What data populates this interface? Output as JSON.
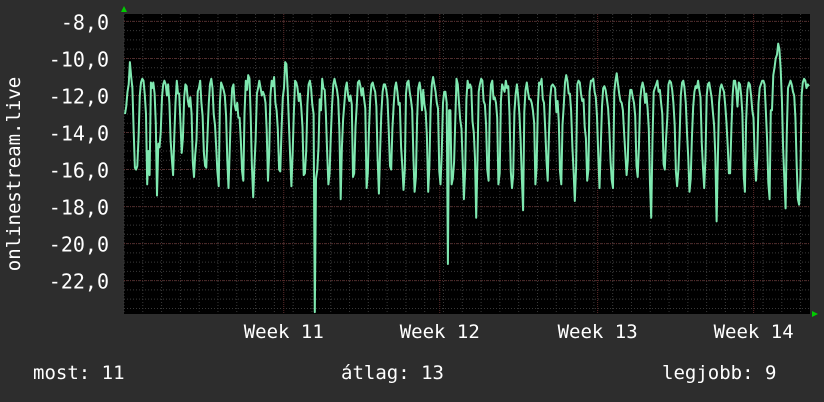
{
  "colors": {
    "background": "#2d2d2d",
    "plot_background": "#000000",
    "grid_major": "#5a2a2a",
    "grid_minor": "#3a3a3a",
    "line": "#7fe8b0",
    "axis_arrow": "#00cc00",
    "text": "#ffffff"
  },
  "legend": {
    "current_label": "most:",
    "current_value": "11",
    "average_label": "átlag:",
    "average_value": "13",
    "best_label": "legjobb:",
    "best_value": "9"
  },
  "chart_data": {
    "type": "line",
    "title": "",
    "ylabel": "onlinestream.live",
    "xlabel": "",
    "ylim": [
      -23.8,
      -7.6
    ],
    "y_ticks": [
      -8.0,
      -10.0,
      -12.0,
      -14.0,
      -16.0,
      -18.0,
      -20.0,
      -22.0
    ],
    "y_tick_labels": [
      "-8,0",
      "-10,0",
      "-12,0",
      "-14,0",
      "-16,0",
      "-18,0",
      "-20,0",
      "-22,0"
    ],
    "x_range_days": [
      0,
      36.5
    ],
    "x_ticks": [
      {
        "label": "Week 11",
        "day": 8.5
      },
      {
        "label": "Week 12",
        "day": 16.8
      },
      {
        "label": "Week 13",
        "day": 25.2
      },
      {
        "label": "Week 14",
        "day": 33.5
      }
    ],
    "grid": true,
    "series": [
      {
        "values": [
          -13.0,
          -12.6,
          -11.8,
          -11.4,
          -10.2,
          -11.0,
          -11.6,
          -13.8,
          -15.9,
          -16.0,
          -15.8,
          -14.2,
          -12.0,
          -11.3,
          -11.1,
          -11.2,
          -11.9,
          -13.0,
          -16.8,
          -15.0,
          -16.3,
          -11.3,
          -11.6,
          -11.3,
          -11.9,
          -13.5,
          -17.4,
          -14.6,
          -14.8,
          -14.0,
          -12.1,
          -11.4,
          -11.2,
          -11.4,
          -12.0,
          -11.4,
          -12.4,
          -14.4,
          -15.4,
          -16.3,
          -14.2,
          -12.4,
          -11.2,
          -11.9,
          -11.9,
          -13.5,
          -15.1,
          -14.3,
          -12.1,
          -11.4,
          -11.5,
          -12.3,
          -12.6,
          -12.1,
          -13.0,
          -15.6,
          -16.4,
          -15.2,
          -14.4,
          -11.8,
          -11.6,
          -11.2,
          -12.4,
          -13.1,
          -15.1,
          -15.8,
          -15.9,
          -14.0,
          -12.4,
          -11.4,
          -11.1,
          -11.6,
          -13.0,
          -13.6,
          -14.8,
          -16.1,
          -16.9,
          -12.4,
          -11.3,
          -11.5,
          -11.7,
          -12.0,
          -13.1,
          -15.5,
          -17.0,
          -14.8,
          -12.8,
          -11.6,
          -11.4,
          -12.5,
          -12.8,
          -12.4,
          -13.2,
          -13.2,
          -14.4,
          -16.1,
          -16.6,
          -13.0,
          -11.2,
          -11.7,
          -10.9,
          -11.1,
          -13.1,
          -15.8,
          -17.5,
          -15.8,
          -14.4,
          -11.9,
          -11.6,
          -11.2,
          -11.6,
          -12.0,
          -11.8,
          -12.0,
          -12.4,
          -13.9,
          -16.6,
          -15.1,
          -12.0,
          -11.2,
          -11.5,
          -11.0,
          -12.4,
          -12.8,
          -13.8,
          -16.0,
          -16.1,
          -13.9,
          -12.1,
          -11.6,
          -10.2,
          -10.3,
          -11.7,
          -13.5,
          -15.2,
          -16.9,
          -15.2,
          -13.0,
          -11.2,
          -11.3,
          -11.6,
          -12.3,
          -11.9,
          -12.6,
          -13.7,
          -16.3,
          -16.2,
          -15.0,
          -12.5,
          -11.4,
          -11.2,
          -11.6,
          -12.5,
          -13.0,
          -14.6,
          -16.5,
          -16.0,
          -14.8,
          -12.2,
          -12.8,
          -11.1,
          -11.6,
          -11.7,
          -13.0,
          -15.0,
          -16.8,
          -16.2,
          -14.2,
          -12.6,
          -11.4,
          -11.1,
          -11.4,
          -11.7,
          -12.2,
          -13.9,
          -17.6,
          -14.8,
          -13.3,
          -12.4,
          -11.6,
          -11.3,
          -12.0,
          -12.3,
          -12.0,
          -12.5,
          -16.4,
          -16.2,
          -13.7,
          -12.6,
          -11.3,
          -11.2,
          -11.5,
          -12.0,
          -11.6,
          -12.2,
          -12.7,
          -17.0,
          -16.2,
          -13.8,
          -12.1,
          -11.4,
          -11.3,
          -11.6,
          -11.8,
          -12.6,
          -15.4,
          -17.3,
          -15.0,
          -13.0,
          -11.8,
          -11.4,
          -11.4,
          -11.7,
          -12.2,
          -13.8,
          -15.8,
          -16.0,
          -13.8,
          -12.5,
          -11.6,
          -11.3,
          -11.8,
          -12.5,
          -12.4,
          -14.8,
          -15.8,
          -17.1,
          -16.0,
          -11.9,
          -11.3,
          -11.2,
          -11.8,
          -12.2,
          -12.8,
          -15.3,
          -17.2,
          -16.4,
          -13.3,
          -11.6,
          -11.3,
          -11.8,
          -12.8,
          -11.7,
          -12.5,
          -12.9,
          -14.2,
          -17.2,
          -15.8,
          -12.7,
          -11.4,
          -11.0,
          -11.4,
          -11.8,
          -12.4,
          -12.7,
          -16.1,
          -16.8,
          -15.2,
          -12.4,
          -11.8,
          -11.8,
          -12.4,
          -11.6,
          -12.8,
          -12.8,
          -16.8,
          -16.5,
          -15.6,
          -13.3,
          -11.1,
          -11.4,
          -12.4,
          -13.3,
          -13.8,
          -15.6,
          -17.6,
          -16.0,
          -12.2,
          -11.2,
          -11.6,
          -11.4,
          -11.6,
          -13.4,
          -14.0,
          -15.4,
          -18.5,
          -15.4,
          -11.8,
          -11.4,
          -11.1,
          -11.2,
          -12.3,
          -12.5,
          -13.6,
          -16.0,
          -16.6,
          -12.6,
          -11.4,
          -11.2,
          -12.2,
          -12.1,
          -12.4,
          -13.2,
          -16.8,
          -16.2,
          -12.3,
          -11.4,
          -11.6,
          -11.8,
          -11.2,
          -11.6,
          -11.5,
          -13.0,
          -16.1,
          -17.0,
          -16.3,
          -12.9,
          -11.9,
          -11.4,
          -12.0,
          -13.0,
          -14.4,
          -16.4,
          -18.2,
          -12.9,
          -11.7,
          -11.3,
          -11.8,
          -12.2,
          -12.2,
          -12.4,
          -12.8,
          -13.5,
          -16.8,
          -15.9,
          -12.5,
          -11.3,
          -11.4,
          -11.1,
          -12.2,
          -12.4,
          -13.9,
          -15.5,
          -16.6,
          -14.0,
          -12.1,
          -11.5,
          -11.4,
          -11.5,
          -11.6,
          -12.9,
          -12.3,
          -13.4,
          -16.1,
          -16.8,
          -13.6,
          -12.6,
          -11.3,
          -10.9,
          -11.2,
          -11.9,
          -11.9,
          -12.8,
          -14.8,
          -16.1,
          -17.7,
          -15.9,
          -11.4,
          -11.2,
          -11.3,
          -11.9,
          -12.3,
          -12.2,
          -13.7,
          -14.3,
          -16.6,
          -16.0,
          -11.8,
          -11.2,
          -11.2,
          -11.1,
          -11.8,
          -12.1,
          -13.1,
          -15.3,
          -17.0,
          -14.9,
          -12.6,
          -11.6,
          -11.5,
          -11.7,
          -12.2,
          -12.7,
          -13.8,
          -15.6,
          -16.6,
          -17.0,
          -11.8,
          -11.2,
          -10.8,
          -11.4,
          -11.9,
          -12.3,
          -12.4,
          -12.8,
          -14.0,
          -15.2,
          -16.3,
          -15.5,
          -12.4,
          -11.7,
          -11.7,
          -12.1,
          -12.4,
          -13.1,
          -15.8,
          -16.4,
          -14.8,
          -12.2,
          -11.6,
          -11.3,
          -11.6,
          -12.4,
          -11.9,
          -12.7,
          -13.8,
          -16.8,
          -18.6,
          -14.4,
          -11.8,
          -11.6,
          -11.4,
          -11.2,
          -11.8,
          -11.7,
          -12.4,
          -13.0,
          -15.7,
          -16.0,
          -14.4,
          -13.2,
          -11.4,
          -11.2,
          -11.3,
          -11.7,
          -12.4,
          -13.6,
          -16.1,
          -16.9,
          -16.0,
          -14.2,
          -12.0,
          -11.3,
          -11.2,
          -11.6,
          -12.4,
          -14.0,
          -15.3,
          -17.2,
          -16.5,
          -14.3,
          -12.6,
          -11.8,
          -11.5,
          -11.6,
          -11.2,
          -11.7,
          -12.1,
          -14.6,
          -15.9,
          -17.0,
          -15.3,
          -12.0,
          -11.4,
          -11.3,
          -11.7,
          -12.1,
          -12.9,
          -13.6,
          -15.2,
          -18.8,
          -15.6,
          -12.4,
          -11.6,
          -11.4,
          -11.6,
          -11.8,
          -12.5,
          -13.4,
          -14.7,
          -16.2,
          -16.2,
          -13.8,
          -12.0,
          -11.2,
          -11.2,
          -11.7,
          -12.6,
          -11.3,
          -11.4,
          -12.0,
          -13.0,
          -16.3,
          -17.2,
          -13.4,
          -11.7,
          -11.3,
          -11.4,
          -12.0,
          -12.8,
          -13.2,
          -15.5,
          -16.6,
          -15.4,
          -12.4,
          -11.6,
          -11.4,
          -11.2,
          -11.2,
          -11.4,
          -12.9,
          -14.4,
          -16.7,
          -17.6,
          -12.8,
          -12.8,
          -10.9,
          -10.5,
          -10.0,
          -9.8,
          -9.2,
          -9.5,
          -10.6,
          -12.2,
          -14.8,
          -16.6,
          -18.1,
          -14.0,
          -11.6,
          -11.4,
          -11.2,
          -11.4,
          -11.8,
          -12.0,
          -13.2,
          -15.8,
          -17.6,
          -17.9,
          -16.5,
          -12.0,
          -11.3,
          -11.1,
          -11.2,
          -11.6,
          -11.4,
          -11.5
        ]
      }
    ],
    "special_points": [
      {
        "index": 154,
        "value": -23.7
      },
      {
        "index": 262,
        "value": -21.1
      },
      {
        "index": 285,
        "value": -18.6
      }
    ]
  }
}
